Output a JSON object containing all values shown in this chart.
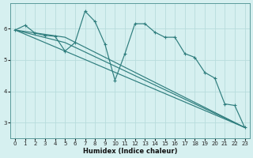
{
  "xlabel": "Humidex (Indice chaleur)",
  "background_color": "#d6f0f0",
  "grid_color": "#b8dcdc",
  "line_color": "#2e7d7d",
  "xlim": [
    -0.5,
    23.5
  ],
  "ylim": [
    2.5,
    6.8
  ],
  "yticks": [
    3,
    4,
    5,
    6
  ],
  "xticks": [
    0,
    1,
    2,
    3,
    4,
    5,
    6,
    7,
    8,
    9,
    10,
    11,
    12,
    13,
    14,
    15,
    16,
    17,
    18,
    19,
    20,
    21,
    22,
    23
  ],
  "lines": [
    {
      "x": [
        0,
        1,
        2,
        3,
        4,
        5,
        6,
        7,
        8,
        9,
        10,
        11,
        12,
        13,
        14,
        15,
        16,
        17,
        18,
        19,
        20,
        21,
        22,
        23
      ],
      "y": [
        5.95,
        6.1,
        5.85,
        5.78,
        5.75,
        5.28,
        5.55,
        6.55,
        6.22,
        5.5,
        4.35,
        5.2,
        6.15,
        6.15,
        5.88,
        5.72,
        5.72,
        5.2,
        5.08,
        4.6,
        4.42,
        3.6,
        3.55,
        2.85
      ]
    },
    {
      "x": [
        0,
        5,
        23
      ],
      "y": [
        5.95,
        5.72,
        2.85
      ]
    },
    {
      "x": [
        0,
        5,
        23
      ],
      "y": [
        5.95,
        5.55,
        2.85
      ]
    },
    {
      "x": [
        0,
        5,
        23
      ],
      "y": [
        5.95,
        5.28,
        2.85
      ]
    }
  ]
}
